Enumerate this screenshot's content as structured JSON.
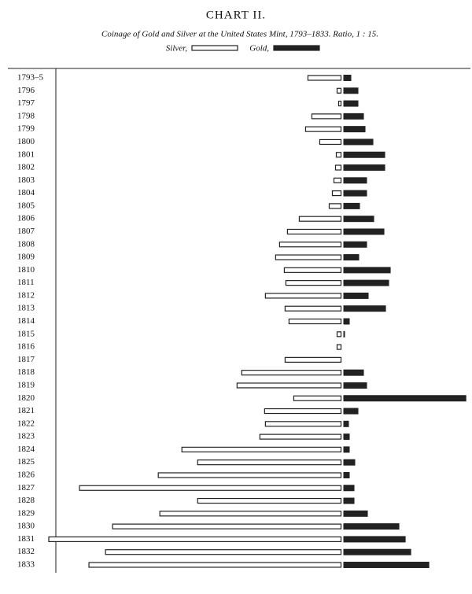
{
  "chart_data": {
    "type": "butterfly",
    "title": "CHART II.",
    "subtitle": "Coinage of Gold and Silver at the United States Mint, 1793–1833.   Ratio, 1 : 15.",
    "categories": [
      "1793–5",
      "1796",
      "1797",
      "1798",
      "1799",
      "1800",
      "1801",
      "1802",
      "1803",
      "1804",
      "1805",
      "1806",
      "1807",
      "1808",
      "1809",
      "1810",
      "1811",
      "1812",
      "1813",
      "1814",
      "1815",
      "1816",
      "1817",
      "1818",
      "1819",
      "1820",
      "1821",
      "1822",
      "1823",
      "1824",
      "1825",
      "1826",
      "1827",
      "1828",
      "1829",
      "1830",
      "1831",
      "1832",
      "1833"
    ],
    "series": [
      {
        "name": "Silver,",
        "color": "#ffffff",
        "side": "left",
        "values": [
          42,
          5,
          3,
          37,
          45,
          27,
          6,
          7,
          9,
          11,
          15,
          53,
          68,
          78,
          83,
          72,
          70,
          96,
          71,
          66,
          5,
          5,
          71,
          126,
          132,
          60,
          97,
          96,
          103,
          202,
          182,
          232,
          332,
          182,
          230,
          290,
          371,
          299,
          320
        ]
      },
      {
        "name": "Gold,",
        "color": "#222222",
        "side": "right",
        "values": [
          10,
          19,
          19,
          26,
          28,
          38,
          53,
          53,
          30,
          30,
          21,
          39,
          52,
          30,
          20,
          60,
          58,
          32,
          54,
          8,
          2,
          0,
          0,
          26,
          30,
          156,
          19,
          7,
          8,
          8,
          15,
          8,
          14,
          14,
          31,
          71,
          79,
          86,
          109
        ]
      }
    ]
  }
}
